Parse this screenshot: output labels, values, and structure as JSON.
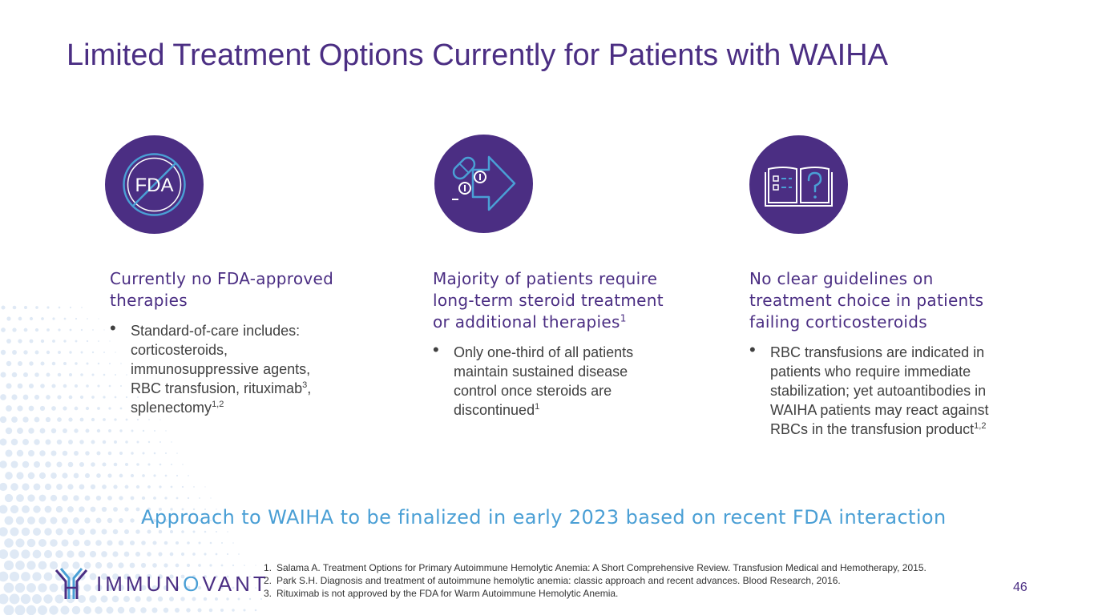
{
  "slide": {
    "title": "Limited Treatment Options Currently for Patients with WAIHA",
    "callout": "Approach to WAIHA to be finalized in early 2023 based on recent FDA interaction",
    "page_number": "46"
  },
  "icons": {
    "col1": "fda-prohibited-icon",
    "col2": "pills-arrow-icon",
    "col3": "guidebook-question-icon",
    "fda_text": "FDA"
  },
  "columns": [
    {
      "heading": "Currently no FDA-approved therapies",
      "heading_sup": "",
      "bullet_parts": [
        "Standard-of-care includes: corticosteroids, immunosuppressive agents, RBC transfusion, rituximab",
        "3",
        ", splenectomy",
        "1,2"
      ]
    },
    {
      "heading": "Majority of patients require long-term steroid treatment or additional therapies",
      "heading_sup": "1",
      "bullet_parts": [
        "Only one-third of all patients maintain sustained disease control once steroids are discontinued",
        "1"
      ]
    },
    {
      "heading": "No clear guidelines on treatment choice in patients failing corticosteroids",
      "heading_sup": "",
      "bullet_parts": [
        "RBC transfusions are indicated in patients who require immediate stabilization; yet autoantibodies in WAIHA patients may react against RBCs in the transfusion product",
        "1,2"
      ]
    }
  ],
  "references": [
    {
      "num": "1.",
      "text": "Salama A. Treatment Options for Primary Autoimmune Hemolytic Anemia: A Short Comprehensive Review. Transfusion Medical and Hemotherapy, 2015."
    },
    {
      "num": "2.",
      "text": "Park S.H. Diagnosis and treatment of autoimmune hemolytic anemia: classic approach and recent advances. Blood Research, 2016."
    },
    {
      "num": "3.",
      "text": "Rituximab is not approved by the FDA for Warm Autoimmune Hemolytic Anemia."
    }
  ],
  "logo": {
    "text_before": "IMMUN",
    "text_accent": "O",
    "text_after": "VANT"
  },
  "colors": {
    "brand_purple": "#4b2e83",
    "accent_blue": "#4a9fd5",
    "body_text": "#404040"
  }
}
